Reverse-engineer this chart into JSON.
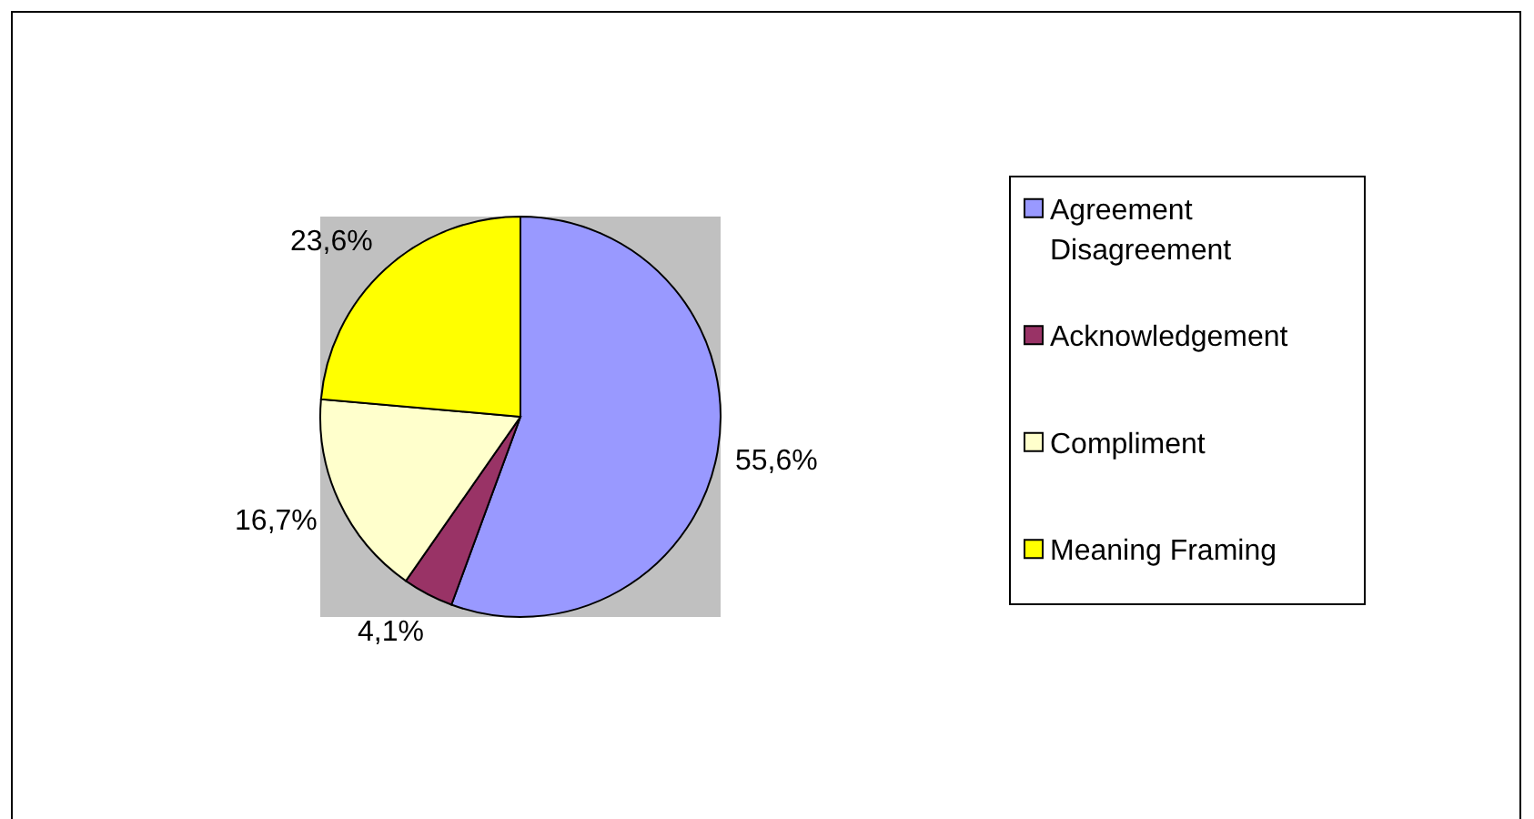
{
  "chart_data": {
    "type": "pie",
    "categories": [
      "Agreement Disagreement",
      "Acknowledgement",
      "Compliment",
      "Meaning Framing"
    ],
    "values": [
      55.6,
      4.1,
      16.7,
      23.6
    ],
    "colors": [
      "#9999ff",
      "#993366",
      "#ffffcc",
      "#ffff00"
    ],
    "value_labels": [
      "55,6%",
      "4,1%",
      "16,7%",
      "23,6%"
    ],
    "legend": "right"
  }
}
